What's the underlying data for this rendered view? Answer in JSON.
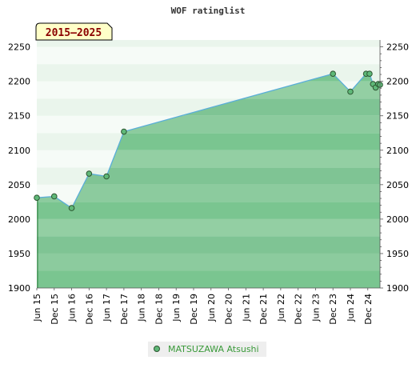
{
  "chart_data": {
    "type": "area",
    "title": "WOF ratinglist",
    "badge": "2015–2025",
    "y_ticks": [
      1900,
      1950,
      2000,
      2050,
      2100,
      2150,
      2200,
      2250
    ],
    "ylim": [
      1900,
      2260
    ],
    "x_ticks": [
      "Jun 15",
      "Dec 15",
      "Jun 16",
      "Dec 16",
      "Jun 17",
      "Dec 17",
      "Jun 18",
      "Dec 18",
      "Jun 19",
      "Dec 19",
      "Jun 20",
      "Dec 20",
      "Jun 21",
      "Dec 21",
      "Jun 22",
      "Dec 22",
      "Jun 23",
      "Dec 23",
      "Jun 24",
      "Dec 24"
    ],
    "xlim": [
      0,
      19.7
    ],
    "series": [
      {
        "name": "MATSUZAWA Atsushi",
        "points": [
          {
            "x": 0,
            "y": 2031
          },
          {
            "x": 1,
            "y": 2033
          },
          {
            "x": 2,
            "y": 2016
          },
          {
            "x": 3,
            "y": 2066
          },
          {
            "x": 4,
            "y": 2062
          },
          {
            "x": 5,
            "y": 2127
          },
          {
            "x": 17,
            "y": 2211
          },
          {
            "x": 18,
            "y": 2185
          },
          {
            "x": 18.9,
            "y": 2211
          },
          {
            "x": 19.1,
            "y": 2211
          },
          {
            "x": 19.3,
            "y": 2196
          },
          {
            "x": 19.45,
            "y": 2191
          },
          {
            "x": 19.6,
            "y": 2196
          },
          {
            "x": 19.7,
            "y": 2195
          }
        ]
      }
    ],
    "grid": true,
    "legend_position": "bottom-center",
    "colors": {
      "line": "#5aaed8",
      "marker_fill": "#5fb878",
      "marker_stroke": "#2c5530",
      "legend_text": "#3a9a3a",
      "badge_fill": "#ffffc8",
      "badge_text": "#8b0000"
    }
  }
}
